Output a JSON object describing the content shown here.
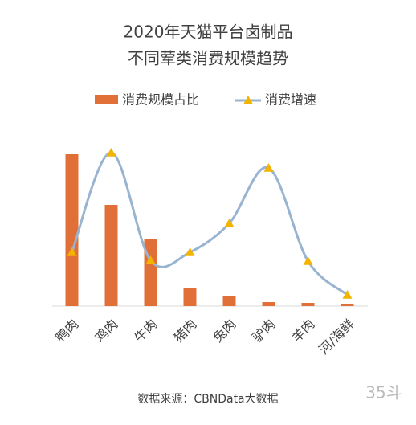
{
  "chart_data": {
    "type": "bar-line",
    "title": [
      "2020年天猫平台卤制品",
      "不同荤类消费规模趋势"
    ],
    "categories": [
      "鸭肉",
      "鸡肉",
      "牛肉",
      "猪肉",
      "兔肉",
      "驴肉",
      "羊肉",
      "河/海鲜"
    ],
    "series": [
      {
        "name": "消费规模占比",
        "type": "bar",
        "color": "#e07038",
        "values": [
          189,
          126,
          84,
          23,
          13,
          5,
          4,
          3
        ]
      },
      {
        "name": "消费增速",
        "type": "line",
        "color": "#98b4d0",
        "marker_color": "#f2b400",
        "values": [
          67,
          191,
          57,
          67,
          103,
          172,
          56,
          14
        ]
      }
    ],
    "ylim": [
      0,
      200
    ],
    "source": "数据来源：CBNData大数据",
    "logo": "35斗"
  }
}
